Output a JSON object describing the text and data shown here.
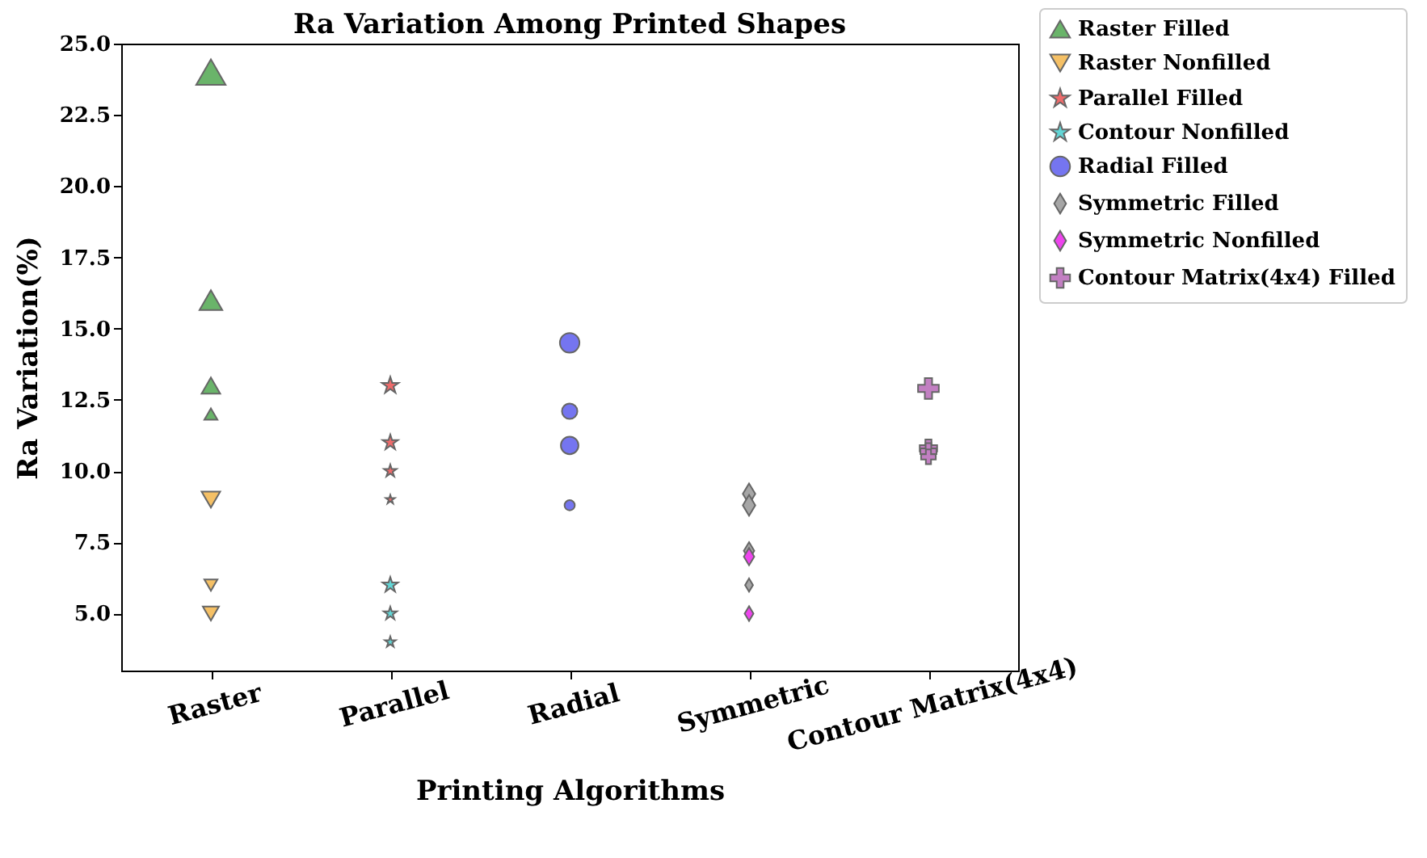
{
  "chart_data": {
    "type": "bubble",
    "title": "Ra Variation Among Printed Shapes",
    "xlabel": "Printing Algorithms",
    "ylabel": "Ra Variation(%)",
    "categories": [
      "Raster",
      "Parallel",
      "Radial",
      "Symmetric",
      "Contour Matrix(4x4)"
    ],
    "ylim": [
      3.0,
      25.0
    ],
    "yticks": [
      {
        "value": 5,
        "label": "5.0"
      },
      7.5,
      {
        "value": 10,
        "label": "10.0"
      },
      12.5,
      {
        "value": 15,
        "label": "15.0"
      },
      17.5,
      {
        "value": 20,
        "label": "20.0"
      },
      22.5,
      {
        "value": 25,
        "label": "25.0"
      }
    ],
    "legend": "top right",
    "grid": false,
    "series": [
      {
        "name": "Raster Filled",
        "color": "#6ab46a",
        "marker": "triangle",
        "x": [
          "Raster",
          "Raster",
          "Raster",
          "Raster"
        ],
        "values": [
          24,
          16,
          13,
          12
        ],
        "sizes": [
          1,
          0.6,
          0.4,
          0.2
        ]
      },
      {
        "name": "Raster Nonfilled",
        "color": "#f5c065",
        "marker": "triangle-down",
        "x": [
          "Raster",
          "Raster",
          "Raster"
        ],
        "values": [
          9,
          6,
          5
        ],
        "sizes": [
          0.4,
          0.2,
          0.3
        ]
      },
      {
        "name": "Parallel Filled",
        "color": "#ee6b6b",
        "marker": "star",
        "x": [
          "Parallel",
          "Parallel",
          "Parallel",
          "Parallel"
        ],
        "values": [
          13,
          11,
          10,
          9
        ],
        "sizes": [
          0.36,
          0.3,
          0.2,
          0.1
        ]
      },
      {
        "name": "Contour Nonfilled",
        "color": "#62d5d5",
        "marker": "star",
        "x": [
          "Parallel",
          "Parallel",
          "Parallel"
        ],
        "values": [
          6,
          5,
          4
        ],
        "sizes": [
          0.3,
          0.22,
          0.15
        ]
      },
      {
        "name": "Radial Filled",
        "color": "#7575f0",
        "marker": "circle",
        "x": [
          "Radial",
          "Radial",
          "Radial",
          "Radial"
        ],
        "values": [
          14.5,
          12.1,
          10.9,
          8.8
        ],
        "sizes": [
          0.8,
          0.5,
          0.65,
          0.22
        ]
      },
      {
        "name": "Symmetric Filled",
        "color": "#a6a6a6",
        "marker": "diamond",
        "x": [
          "Symmetric",
          "Symmetric",
          "Symmetric",
          "Symmetric"
        ],
        "values": [
          9.2,
          8.8,
          7.2,
          6.0
        ],
        "sizes": [
          0.5,
          0.5,
          0.35,
          0.2
        ]
      },
      {
        "name": "Symmetric Nonfilled",
        "color": "#ee44ee",
        "marker": "diamond",
        "x": [
          "Symmetric",
          "Symmetric"
        ],
        "values": [
          7.0,
          5.0
        ],
        "sizes": [
          0.35,
          0.25
        ]
      },
      {
        "name": "Contour Matrix(4x4) Filled",
        "color": "#c27fc2",
        "marker": "cross",
        "x": [
          "Contour Matrix(4x4)",
          "Contour Matrix(4x4)",
          "Contour Matrix(4x4)",
          "Contour Matrix(4x4)"
        ],
        "values": [
          12.9,
          10.8,
          10.7,
          10.5
        ],
        "sizes": [
          0.5,
          0.35,
          0.3,
          0.25
        ]
      }
    ]
  }
}
